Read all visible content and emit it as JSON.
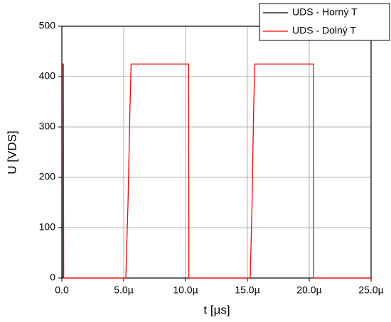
{
  "chart_data": {
    "type": "line",
    "xlabel": "t [µs]",
    "ylabel": "U [VDS]",
    "xlim": [
      0,
      25
    ],
    "ylim": [
      0,
      500
    ],
    "xticks": [
      {
        "value": 0,
        "label": "0.0"
      },
      {
        "value": 5,
        "label": "5.0µ"
      },
      {
        "value": 10,
        "label": "10.0µ"
      },
      {
        "value": 15,
        "label": "15.0µ"
      },
      {
        "value": 20,
        "label": "20.0µ"
      },
      {
        "value": 25,
        "label": "25.0µ"
      }
    ],
    "yticks": [
      0,
      100,
      200,
      300,
      400,
      500
    ],
    "grid": true,
    "legend": "upper right",
    "series": [
      {
        "name": "UDS - Horný T",
        "color": "#000000",
        "x": [
          0.1,
          0.1
        ],
        "values": [
          425,
          0
        ]
      },
      {
        "name": "UDS - Dolný T",
        "color": "#ff0000",
        "x": [
          0,
          0.12,
          0.15,
          5.17,
          5.35,
          5.5,
          5.6,
          10.25,
          10.27,
          15.23,
          15.38,
          15.5,
          15.6,
          20.34,
          20.36,
          25
        ],
        "values": [
          425,
          425,
          0,
          0,
          150,
          330,
          425,
          425,
          0,
          0,
          150,
          330,
          425,
          425,
          0,
          0
        ]
      }
    ]
  }
}
